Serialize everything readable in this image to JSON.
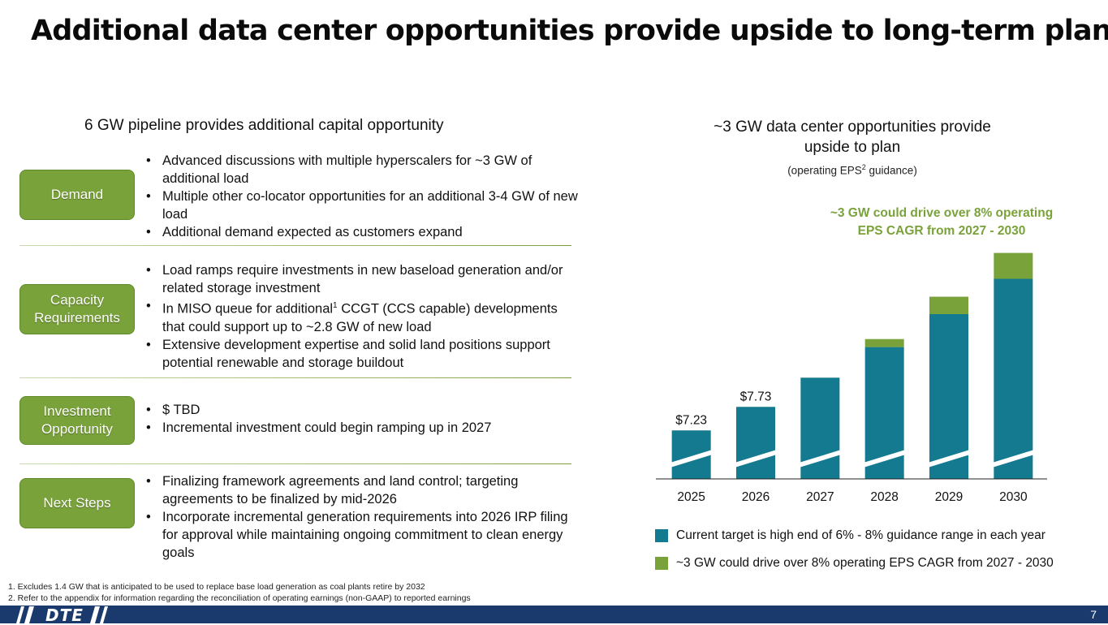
{
  "slide": {
    "title": "Additional data center opportunities provide upside to long-term plan",
    "page_number": "7"
  },
  "left": {
    "heading": "6 GW pipeline provides additional capital opportunity",
    "sections": [
      {
        "label": "Demand",
        "bullets": [
          "Advanced discussions with multiple hyperscalers for ~3 GW of additional load",
          "Multiple other co-locator opportunities for an additional 3-4 GW of new load",
          "Additional demand expected as customers expand"
        ]
      },
      {
        "label": "Capacity Requirements",
        "bullets": [
          "Load ramps require investments in new baseload generation and/or related storage investment",
          "In MISO queue for additional",
          "Extensive development expertise and solid land positions support potential renewable and storage buildout"
        ],
        "bullet2_sup": "1",
        "bullet2_rest": " CCGT (CCS capable) developments that could support up to ~2.8 GW of new load"
      },
      {
        "label": "Investment Opportunity",
        "bullets": [
          "$ TBD",
          "Incremental investment could begin ramping up in 2027"
        ]
      },
      {
        "label": "Next Steps",
        "bullets": [
          "Finalizing framework agreements and land control; targeting agreements to be finalized by mid-2026",
          "Incorporate incremental generation requirements into 2026 IRP filing for approval while maintaining ongoing commitment to clean energy goals"
        ]
      }
    ]
  },
  "right": {
    "heading_line1": "~3 GW data center opportunities provide",
    "heading_line2": "upside to plan",
    "sub_prefix": "(operating EPS",
    "sub_sup": "2",
    "sub_suffix": " guidance)",
    "callout_line1": "~3 GW could drive over 8% operating",
    "callout_line2": "EPS CAGR  from 2027 - 2030"
  },
  "chart_data": {
    "type": "bar",
    "stacked": true,
    "axis_break": true,
    "categories": [
      "2025",
      "2026",
      "2027",
      "2028",
      "2029",
      "2030"
    ],
    "series": [
      {
        "name": "Current target is high end of 6% - 8% guidance range in each year",
        "color": "#137a8f",
        "values": [
          7.23,
          7.73,
          8.35,
          9.0,
          9.7,
          10.45
        ]
      },
      {
        "name": "~3 GW could drive over 8% operating EPS CAGR from 2027 - 2030",
        "color": "#7aa23a",
        "values": [
          0,
          0,
          0,
          0.17,
          0.37,
          0.55
        ]
      }
    ],
    "data_labels": [
      "$7.23",
      "$7.73",
      "",
      "",
      "",
      ""
    ],
    "ylim": [
      6.2,
      11.2
    ],
    "xlabel": "",
    "ylabel": ""
  },
  "footnotes": [
    "1.   Excludes 1.4 GW that is anticipated to be used to replace base load generation as coal plants retire by 2032",
    "2.   Refer to the appendix for information regarding the reconciliation of operating earnings (non-GAAP) to reported earnings"
  ],
  "brand": {
    "logo_text": "DTE",
    "navy": "#1a3a6e",
    "teal": "#137a8f",
    "green": "#7aa23a"
  }
}
